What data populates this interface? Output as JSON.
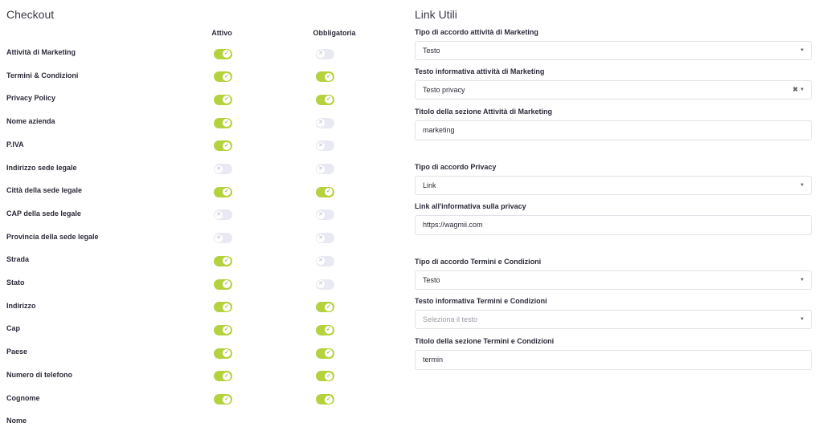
{
  "checkout": {
    "title": "Checkout",
    "columns": [
      "Attivo",
      "Obbligatoria"
    ],
    "rows": [
      {
        "label": "Attività di Marketing",
        "active": true,
        "required": false
      },
      {
        "label": "Termini & Condizioni",
        "active": true,
        "required": true
      },
      {
        "label": "Privacy Policy",
        "active": true,
        "required": true
      },
      {
        "label": "Nome azienda",
        "active": true,
        "required": false
      },
      {
        "label": "P.IVA",
        "active": true,
        "required": false
      },
      {
        "label": "Indirizzo sede legale",
        "active": false,
        "required": false
      },
      {
        "label": "Città della sede legale",
        "active": true,
        "required": true
      },
      {
        "label": "CAP della sede legale",
        "active": false,
        "required": false
      },
      {
        "label": "Provincia della sede legale",
        "active": false,
        "required": false
      },
      {
        "label": "Strada",
        "active": true,
        "required": false
      },
      {
        "label": "Stato",
        "active": true,
        "required": false
      },
      {
        "label": "Indirizzo",
        "active": true,
        "required": true
      },
      {
        "label": "Cap",
        "active": true,
        "required": true
      },
      {
        "label": "Paese",
        "active": true,
        "required": true
      },
      {
        "label": "Numero di telefono",
        "active": true,
        "required": true
      },
      {
        "label": "Cognome",
        "active": true,
        "required": true
      },
      {
        "label": "Nome",
        "active": null,
        "required": null
      }
    ]
  },
  "links": {
    "title": "Link Utili",
    "fields": [
      {
        "label": "Tipo di accordo attività di Marketing",
        "value": "Testo",
        "kind": "select"
      },
      {
        "label": "Testo informativa attività di Marketing",
        "value": "Testo privacy",
        "kind": "select",
        "clearable": true
      },
      {
        "label": "Titolo della sezione Attività di Marketing",
        "value": "marketing",
        "kind": "input"
      },
      {
        "label": "Tipo di accordo Privacy",
        "value": "Link",
        "kind": "select"
      },
      {
        "label": "Link all'informativa sulla privacy",
        "value": "https://wagmii.com",
        "kind": "input"
      },
      {
        "label": "Tipo di accordo Termini e Condizioni",
        "value": "Testo",
        "kind": "select"
      },
      {
        "label": "Testo informativa Termini e Condizioni",
        "value": "Seleziona il testo",
        "kind": "select",
        "placeholder": true
      },
      {
        "label": "Titolo della sezione Termini e Condizioni",
        "value": "termin",
        "kind": "input"
      }
    ]
  }
}
